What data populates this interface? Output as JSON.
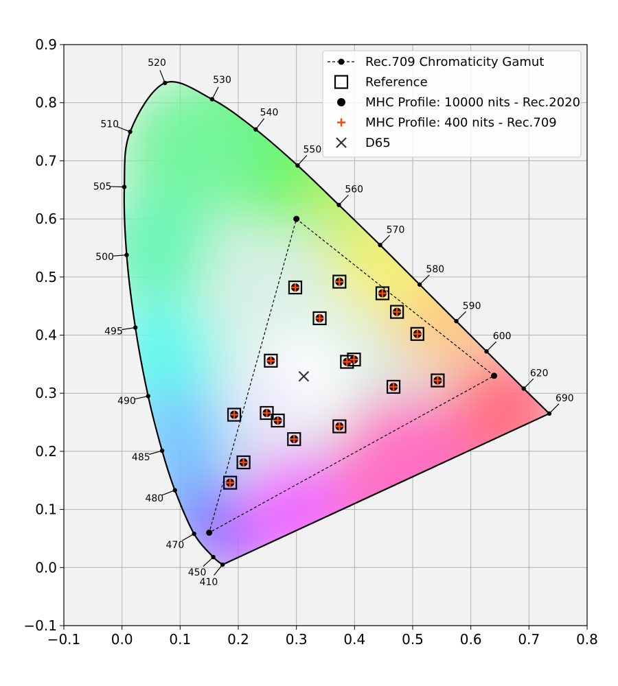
{
  "chart_data": {
    "type": "scatter",
    "title": "",
    "xlabel": "",
    "ylabel": "",
    "xlim": [
      -0.1,
      0.8
    ],
    "ylim": [
      -0.1,
      0.9
    ],
    "x_ticks": [
      -0.1,
      0.0,
      0.1,
      0.2,
      0.3,
      0.4,
      0.5,
      0.6,
      0.7,
      0.8
    ],
    "x_tick_labels": [
      "−0.1",
      "0.0",
      "0.1",
      "0.2",
      "0.3",
      "0.4",
      "0.5",
      "0.6",
      "0.7",
      "0.8"
    ],
    "y_ticks": [
      -0.1,
      0.0,
      0.1,
      0.2,
      0.3,
      0.4,
      0.5,
      0.6,
      0.7,
      0.8,
      0.9
    ],
    "y_tick_labels": [
      "−0.1",
      "0.0",
      "0.1",
      "0.2",
      "0.3",
      "0.4",
      "0.5",
      "0.6",
      "0.7",
      "0.8",
      "0.9"
    ],
    "grid": true,
    "legend_position": "top-right",
    "spectral_locus": [
      {
        "label": "410",
        "x": 0.173,
        "y": 0.005
      },
      {
        "label": "450",
        "x": 0.157,
        "y": 0.018
      },
      {
        "label": "470",
        "x": 0.124,
        "y": 0.058
      },
      {
        "label": "480",
        "x": 0.091,
        "y": 0.133
      },
      {
        "label": "485",
        "x": 0.069,
        "y": 0.201
      },
      {
        "label": "490",
        "x": 0.045,
        "y": 0.295
      },
      {
        "label": "495",
        "x": 0.023,
        "y": 0.413
      },
      {
        "label": "500",
        "x": 0.008,
        "y": 0.538
      },
      {
        "label": "505",
        "x": 0.004,
        "y": 0.655
      },
      {
        "label": "510",
        "x": 0.014,
        "y": 0.75
      },
      {
        "label": "520",
        "x": 0.074,
        "y": 0.834
      },
      {
        "label": "530",
        "x": 0.155,
        "y": 0.806
      },
      {
        "label": "540",
        "x": 0.23,
        "y": 0.754
      },
      {
        "label": "550",
        "x": 0.302,
        "y": 0.692
      },
      {
        "label": "560",
        "x": 0.373,
        "y": 0.624
      },
      {
        "label": "570",
        "x": 0.444,
        "y": 0.555
      },
      {
        "label": "580",
        "x": 0.512,
        "y": 0.487
      },
      {
        "label": "590",
        "x": 0.575,
        "y": 0.424
      },
      {
        "label": "600",
        "x": 0.627,
        "y": 0.372
      },
      {
        "label": "620",
        "x": 0.691,
        "y": 0.308
      },
      {
        "label": "690",
        "x": 0.735,
        "y": 0.265
      }
    ],
    "series": [
      {
        "name": "Rec.709 Chromaticity Gamut",
        "marker": "dot-dashed-line",
        "color": "#000000",
        "points": [
          [
            0.64,
            0.33
          ],
          [
            0.3,
            0.6
          ],
          [
            0.15,
            0.06
          ]
        ]
      },
      {
        "name": "Reference",
        "marker": "open-square",
        "color": "#000000",
        "points": [
          [
            0.298,
            0.482
          ],
          [
            0.374,
            0.492
          ],
          [
            0.448,
            0.472
          ],
          [
            0.34,
            0.429
          ],
          [
            0.473,
            0.44
          ],
          [
            0.508,
            0.402
          ],
          [
            0.256,
            0.356
          ],
          [
            0.387,
            0.354
          ],
          [
            0.399,
            0.358
          ],
          [
            0.467,
            0.311
          ],
          [
            0.543,
            0.322
          ],
          [
            0.193,
            0.263
          ],
          [
            0.249,
            0.266
          ],
          [
            0.268,
            0.253
          ],
          [
            0.209,
            0.181
          ],
          [
            0.296,
            0.221
          ],
          [
            0.374,
            0.243
          ],
          [
            0.186,
            0.146
          ]
        ]
      },
      {
        "name": "MHC Profile: 10000 nits - Rec.2020",
        "marker": "filled-circle",
        "color": "#000000",
        "points": [
          [
            0.298,
            0.482
          ],
          [
            0.374,
            0.492
          ],
          [
            0.448,
            0.472
          ],
          [
            0.34,
            0.429
          ],
          [
            0.473,
            0.44
          ],
          [
            0.508,
            0.402
          ],
          [
            0.256,
            0.356
          ],
          [
            0.387,
            0.354
          ],
          [
            0.399,
            0.358
          ],
          [
            0.467,
            0.311
          ],
          [
            0.543,
            0.322
          ],
          [
            0.193,
            0.263
          ],
          [
            0.249,
            0.266
          ],
          [
            0.268,
            0.253
          ],
          [
            0.209,
            0.181
          ],
          [
            0.296,
            0.221
          ],
          [
            0.374,
            0.243
          ],
          [
            0.186,
            0.146
          ]
        ]
      },
      {
        "name": "MHC Profile: 400 nits - Rec.709",
        "marker": "plus",
        "color": "#ff4500",
        "points": [
          [
            0.298,
            0.482
          ],
          [
            0.374,
            0.492
          ],
          [
            0.448,
            0.472
          ],
          [
            0.34,
            0.429
          ],
          [
            0.473,
            0.44
          ],
          [
            0.508,
            0.402
          ],
          [
            0.256,
            0.356
          ],
          [
            0.387,
            0.354
          ],
          [
            0.399,
            0.358
          ],
          [
            0.467,
            0.311
          ],
          [
            0.543,
            0.322
          ],
          [
            0.193,
            0.263
          ],
          [
            0.249,
            0.266
          ],
          [
            0.268,
            0.253
          ],
          [
            0.209,
            0.181
          ],
          [
            0.296,
            0.221
          ],
          [
            0.374,
            0.243
          ],
          [
            0.186,
            0.146
          ]
        ]
      },
      {
        "name": "D65",
        "marker": "x",
        "color": "#333333",
        "points": [
          [
            0.3127,
            0.329
          ]
        ]
      }
    ]
  }
}
